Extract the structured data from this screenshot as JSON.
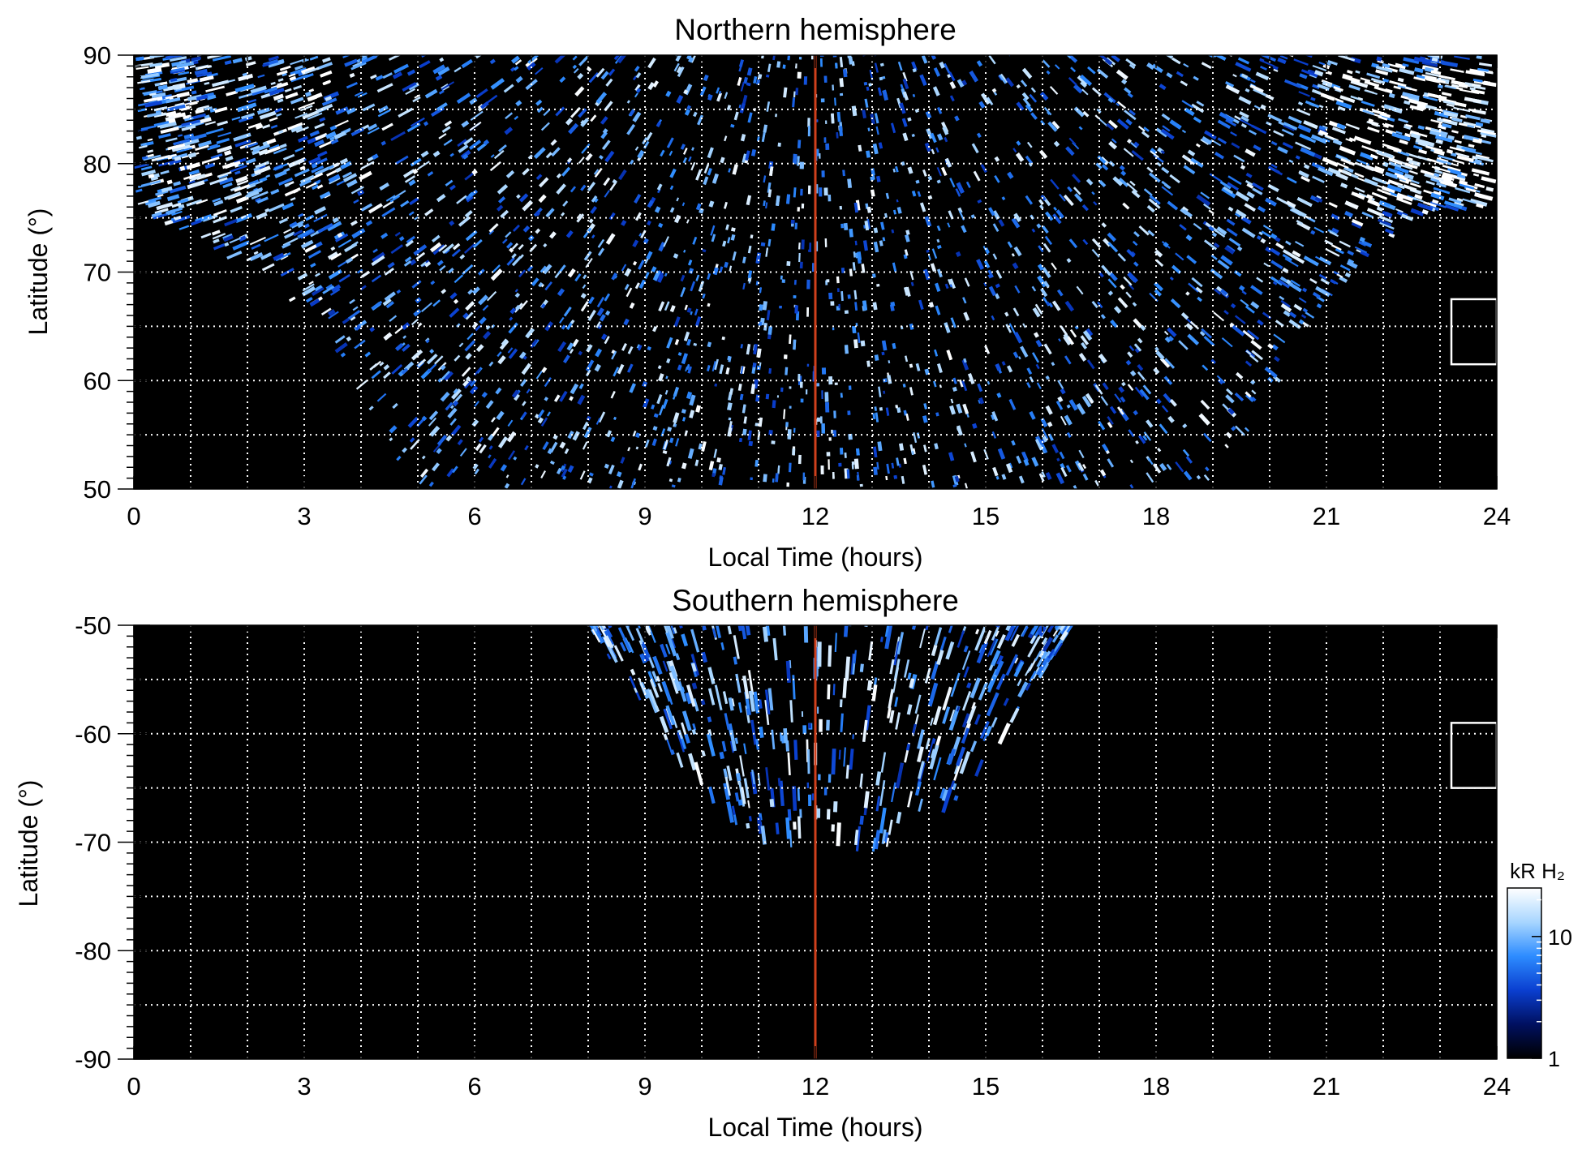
{
  "chart_data": [
    {
      "type": "heatmap",
      "title": "Northern hemisphere",
      "xlabel": "Local Time (hours)",
      "ylabel": "Latitude (°)",
      "xlim": [
        0,
        24
      ],
      "ylim": [
        50,
        90
      ],
      "xticks": [
        "0",
        "3",
        "6",
        "9",
        "12",
        "15",
        "18",
        "21",
        "24"
      ],
      "yticks": [
        "50",
        "60",
        "70",
        "80",
        "90"
      ],
      "grid": true,
      "marker_line": {
        "x": 12,
        "color": "#d0401c"
      },
      "box": {
        "x": [
          23.2,
          24.0
        ],
        "y": [
          61.5,
          67.5
        ]
      },
      "coverage": [
        [
          0.0,
          75.5
        ],
        [
          1.0,
          73.5
        ],
        [
          2.0,
          70.0
        ],
        [
          3.0,
          66.0
        ],
        [
          4.0,
          58.0
        ],
        [
          4.5,
          53.0
        ],
        [
          5.0,
          50.0
        ],
        [
          19.0,
          50.0
        ],
        [
          20.0,
          58.0
        ],
        [
          21.0,
          67.0
        ],
        [
          22.0,
          72.5
        ],
        [
          23.0,
          75.5
        ],
        [
          24.0,
          76.0
        ]
      ],
      "bright_regions": [
        {
          "lt": [
            21.0,
            24.0
          ],
          "lat": [
            76,
            89
          ],
          "level": "high"
        },
        {
          "lt": [
            0.0,
            4.0
          ],
          "lat": [
            76,
            89
          ],
          "level": "medium"
        }
      ]
    },
    {
      "type": "heatmap",
      "title": "Southern hemisphere",
      "xlabel": "Local Time (hours)",
      "ylabel": "Latitude (°)",
      "xlim": [
        0,
        24
      ],
      "ylim": [
        -90,
        -50
      ],
      "xticks": [
        "0",
        "3",
        "6",
        "9",
        "12",
        "15",
        "18",
        "21",
        "24"
      ],
      "yticks": [
        "-50",
        "-60",
        "-70",
        "-80",
        "-90"
      ],
      "grid": true,
      "marker_line": {
        "x": 12,
        "color": "#d0401c"
      },
      "box": {
        "x": [
          23.2,
          24.0
        ],
        "y": [
          -65,
          -59
        ]
      },
      "coverage": [
        [
          8.0,
          -50.0
        ],
        [
          9.0,
          -58.0
        ],
        [
          10.0,
          -66.0
        ],
        [
          11.0,
          -70.5
        ],
        [
          12.0,
          -71.0
        ],
        [
          13.0,
          -71.5
        ],
        [
          14.0,
          -69.0
        ],
        [
          15.0,
          -63.0
        ],
        [
          16.0,
          -55.0
        ],
        [
          16.5,
          -50.0
        ]
      ],
      "bright_regions": []
    }
  ],
  "colorbar": {
    "label": "kR H₂",
    "ticks": [
      "1",
      "10"
    ],
    "scale": "log",
    "range": [
      1,
      25
    ],
    "colors": [
      "#000000",
      "#001060",
      "#0a3fd0",
      "#2d8cff",
      "#a8d6ff",
      "#ffffff"
    ]
  }
}
